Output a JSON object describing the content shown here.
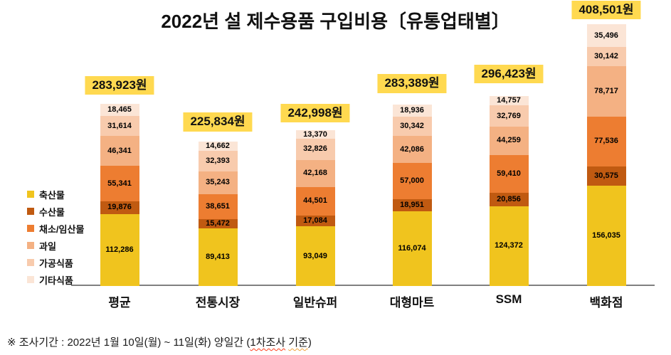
{
  "title": "2022년 설 제수용품 구입비용〔유통업태별〕",
  "note": {
    "prefix": "※ 조사기간 : 2022년 1월 10일(월) ~ 11일(화) 양일간 (",
    "underlined_red": "1차조사",
    "separator": " ",
    "underlined_orange": "기준",
    "suffix": ")"
  },
  "chart_data": {
    "type": "bar",
    "stacked": true,
    "unit": "원",
    "background": "#FFFFFF",
    "axis_color": "#808080",
    "highlight_color": "#FFD950",
    "legend_position": "left",
    "categories": [
      "평균",
      "전통시장",
      "일반슈퍼",
      "대형마트",
      "SSM",
      "백화점"
    ],
    "totals": [
      "283,923원",
      "225,834원",
      "242,998원",
      "283,389원",
      "296,423원",
      "408,501원"
    ],
    "series": [
      {
        "name": "축산물",
        "color": "#F0C41E",
        "values": [
          112286,
          89413,
          93049,
          116074,
          124372,
          156035
        ]
      },
      {
        "name": "수산물",
        "color": "#C05A11",
        "values": [
          19876,
          15472,
          17084,
          18951,
          20856,
          30575
        ]
      },
      {
        "name": "채소/임산물",
        "color": "#ED7D31",
        "values": [
          55341,
          38651,
          44501,
          57000,
          59410,
          77536
        ]
      },
      {
        "name": "과일",
        "color": "#F4B183",
        "values": [
          46341,
          35243,
          42168,
          42086,
          44259,
          78717
        ]
      },
      {
        "name": "가공식품",
        "color": "#F8CBAD",
        "values": [
          31614,
          32393,
          32826,
          30342,
          32769,
          30142
        ]
      },
      {
        "name": "기타식품",
        "color": "#FBE5D6",
        "values": [
          18465,
          14662,
          13370,
          18936,
          14757,
          35496
        ]
      }
    ]
  }
}
